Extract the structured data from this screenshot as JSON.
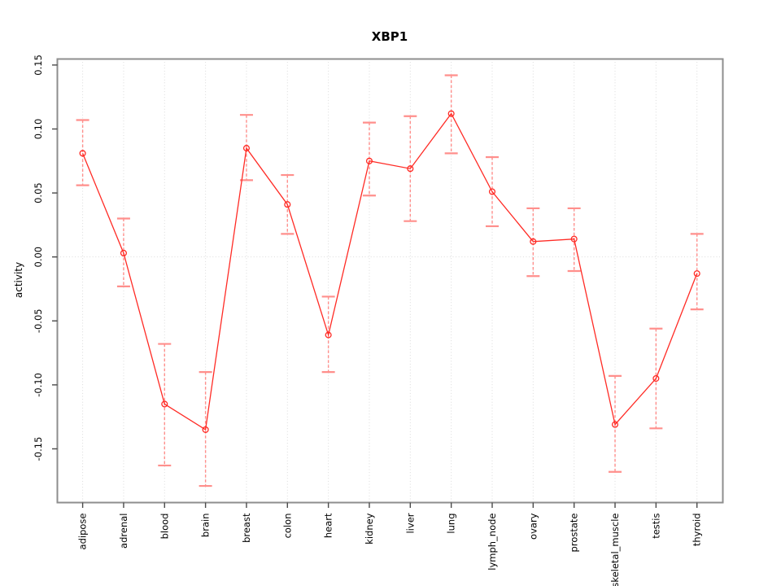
{
  "chart_data": {
    "type": "line",
    "title": "XBP1",
    "xlabel": "",
    "ylabel": "activity",
    "categories": [
      "adipose",
      "adrenal",
      "blood",
      "brain",
      "breast",
      "colon",
      "heart",
      "kidney",
      "liver",
      "lung",
      "lymph_node",
      "ovary",
      "prostate",
      "skeletal_muscle",
      "testis",
      "thyroid"
    ],
    "series": [
      {
        "name": "activity",
        "values": [
          0.081,
          0.003,
          -0.115,
          -0.135,
          0.085,
          0.041,
          -0.061,
          0.075,
          0.069,
          0.112,
          0.051,
          0.012,
          0.014,
          -0.131,
          -0.095,
          -0.013
        ],
        "lower": [
          0.056,
          -0.023,
          -0.163,
          -0.179,
          0.06,
          0.018,
          -0.09,
          0.048,
          0.028,
          0.081,
          0.024,
          -0.015,
          -0.011,
          -0.168,
          -0.134,
          -0.041
        ],
        "upper": [
          0.107,
          0.03,
          -0.068,
          -0.09,
          0.111,
          0.064,
          -0.031,
          0.105,
          0.11,
          0.142,
          0.078,
          0.038,
          0.038,
          -0.093,
          -0.056,
          0.018
        ]
      }
    ],
    "ylim": [
      -0.192,
      0.1547
    ],
    "yticks": [
      -0.15,
      -0.1,
      -0.05,
      0.0,
      0.05,
      0.1,
      0.15
    ],
    "grid": "dotted vertical line at each category; dotted horizontal line at y=0",
    "legend": "none",
    "marker": "open-circle",
    "colors": {
      "line": "#ff2b25",
      "error_bar": "#ff8f8c",
      "grid": "#dadada",
      "frame": "#8e8e8e",
      "tick": "#4a4a4a",
      "text": "#000000",
      "background": "#ffffff"
    }
  }
}
